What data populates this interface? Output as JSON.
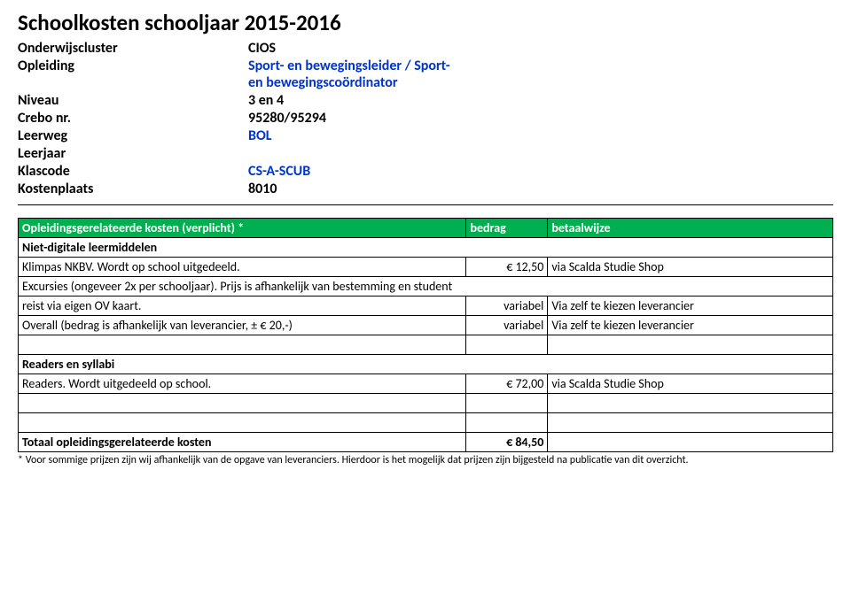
{
  "title": "Schoolkosten schooljaar 2015-2016",
  "meta": {
    "onderwijscluster_label": "Onderwijscluster",
    "onderwijscluster_value": "CIOS",
    "opleiding_label": "Opleiding",
    "opleiding_value_line1": "Sport- en bewegingsleider / Sport-",
    "opleiding_value_line2": "en bewegingscoördinator",
    "niveau_label": "Niveau",
    "niveau_value": "3 en 4",
    "crebo_label": "Crebo nr.",
    "crebo_value": "95280/95294",
    "leerweg_label": "Leerweg",
    "leerweg_value": "BOL",
    "leerjaar_label": "Leerjaar",
    "leerjaar_value": "",
    "klascode_label": "Klascode",
    "klascode_value": "CS-A-SCUB",
    "kostenplaats_label": "Kostenplaats",
    "kostenplaats_value": "8010"
  },
  "colors": {
    "header_bg": "#00b050",
    "header_fg": "#ffffff",
    "accent_blue": "#0033cc",
    "border": "#000000",
    "background": "#ffffff"
  },
  "table": {
    "header": {
      "desc": "Opleidingsgerelateerde kosten (verplicht) *",
      "amount": "bedrag",
      "pay": "betaalwijze"
    },
    "section1_label": "Niet-digitale leermiddelen",
    "row_klimpas": {
      "desc": "Klimpas NKBV. Wordt op school uitgedeeld.",
      "amount": "€ 12,50",
      "pay": "via Scalda Studie Shop"
    },
    "row_excursies": {
      "desc1": "Excursies (ongeveer 2x per schooljaar). Prijs is afhankelijk van bestemming en student",
      "desc2": "reist via eigen OV kaart.",
      "amount": "variabel",
      "pay": "Via zelf te kiezen leverancier"
    },
    "row_overall": {
      "desc": "Overall  (bedrag is afhankelijk van leverancier, ± € 20,-)",
      "amount": "variabel",
      "pay": "Via zelf te kiezen leverancier"
    },
    "section2_label": "Readers en syllabi",
    "row_readers": {
      "desc": "Readers. Wordt uitgedeeld op school.",
      "amount": "€ 72,00",
      "pay": "via Scalda Studie Shop"
    },
    "total": {
      "desc": "Totaal opleidingsgerelateerde kosten",
      "amount": "€ 84,50"
    }
  },
  "footnote": "* Voor sommige prijzen zijn wij afhankelijk van de opgave van leveranciers. Hierdoor is het mogelijk dat prijzen zijn bijgesteld na publicatie van dit overzicht."
}
